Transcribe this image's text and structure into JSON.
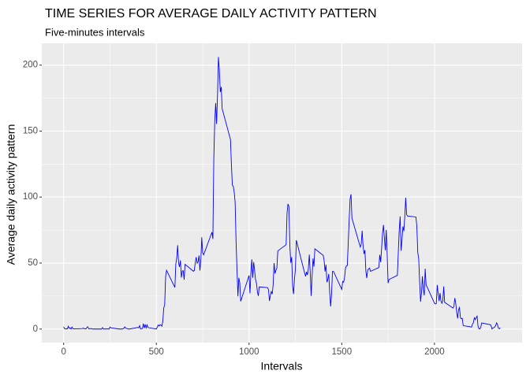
{
  "chart_data": {
    "type": "line",
    "title": "TIME SERIES FOR AVERAGE DAILY ACTIVITY PATTERN",
    "subtitle": "Five-minutes intervals",
    "x_label": "Intervals",
    "y_label": "Average daily activity pattern",
    "x": [
      0,
      5,
      10,
      15,
      20,
      25,
      30,
      35,
      40,
      45,
      50,
      55,
      100,
      105,
      110,
      115,
      120,
      125,
      130,
      135,
      140,
      145,
      150,
      155,
      200,
      205,
      210,
      215,
      220,
      225,
      230,
      235,
      240,
      245,
      250,
      255,
      300,
      305,
      310,
      315,
      320,
      325,
      330,
      335,
      340,
      345,
      350,
      355,
      400,
      405,
      410,
      415,
      420,
      425,
      430,
      435,
      440,
      445,
      450,
      455,
      500,
      505,
      510,
      515,
      520,
      525,
      530,
      535,
      540,
      545,
      550,
      555,
      600,
      605,
      610,
      615,
      620,
      625,
      630,
      635,
      640,
      645,
      650,
      655,
      700,
      705,
      710,
      715,
      720,
      725,
      730,
      735,
      740,
      745,
      750,
      755,
      800,
      805,
      810,
      815,
      820,
      825,
      830,
      835,
      840,
      845,
      850,
      855,
      900,
      905,
      910,
      915,
      920,
      925,
      930,
      935,
      940,
      945,
      950,
      955,
      1000,
      1005,
      1010,
      1015,
      1020,
      1025,
      1030,
      1035,
      1040,
      1045,
      1050,
      1055,
      1100,
      1105,
      1110,
      1115,
      1120,
      1125,
      1130,
      1135,
      1140,
      1145,
      1150,
      1155,
      1200,
      1205,
      1210,
      1215,
      1220,
      1225,
      1230,
      1235,
      1240,
      1245,
      1250,
      1255,
      1300,
      1305,
      1310,
      1315,
      1320,
      1325,
      1330,
      1335,
      1340,
      1345,
      1350,
      1355,
      1400,
      1405,
      1410,
      1415,
      1420,
      1425,
      1430,
      1435,
      1440,
      1445,
      1450,
      1455,
      1500,
      1505,
      1510,
      1515,
      1520,
      1525,
      1530,
      1535,
      1540,
      1545,
      1550,
      1555,
      1600,
      1605,
      1610,
      1615,
      1620,
      1625,
      1630,
      1635,
      1640,
      1645,
      1650,
      1655,
      1700,
      1705,
      1710,
      1715,
      1720,
      1725,
      1730,
      1735,
      1740,
      1745,
      1750,
      1755,
      1800,
      1805,
      1810,
      1815,
      1820,
      1825,
      1830,
      1835,
      1840,
      1845,
      1850,
      1855,
      1900,
      1905,
      1910,
      1915,
      1920,
      1925,
      1930,
      1935,
      1940,
      1945,
      1950,
      1955,
      2000,
      2005,
      2010,
      2015,
      2020,
      2025,
      2030,
      2035,
      2040,
      2045,
      2050,
      2055,
      2100,
      2105,
      2110,
      2115,
      2120,
      2125,
      2130,
      2135,
      2140,
      2145,
      2150,
      2155,
      2200,
      2205,
      2210,
      2215,
      2220,
      2225,
      2230,
      2235,
      2240,
      2245,
      2250,
      2255,
      2300,
      2305,
      2310,
      2315,
      2320,
      2325,
      2330,
      2335,
      2340,
      2345,
      2350,
      2355
    ],
    "series": [
      {
        "color": "#0000ff",
        "values": [
          1.7,
          0.3,
          0.1,
          0.2,
          0.1,
          2.1,
          0.5,
          0.9,
          0,
          1.5,
          0.3,
          0.1,
          0.3,
          0.7,
          0.2,
          0.3,
          0,
          1.1,
          1.8,
          0.2,
          0.2,
          0.4,
          0.3,
          0,
          0,
          0,
          1.1,
          0,
          0,
          0.1,
          0,
          0.2,
          0,
          0,
          1.5,
          0.9,
          0,
          0,
          0,
          0,
          0.2,
          0.6,
          1.6,
          0.6,
          0.5,
          0.1,
          0,
          0,
          1.2,
          0.9,
          2.6,
          0,
          0.3,
          0.4,
          4.1,
          0.7,
          3.5,
          0.8,
          3.1,
          1.1,
          0,
          1.5,
          3,
          2.2,
          3.3,
          3,
          2.1,
          6,
          16,
          18.3,
          39.5,
          44.5,
          31.5,
          49.3,
          53.8,
          63.5,
          50,
          47,
          52,
          39,
          44,
          44.2,
          37.4,
          49,
          43.8,
          44.4,
          50.5,
          54.5,
          49.9,
          50.9,
          55.7,
          44.3,
          52.3,
          69.5,
          57.8,
          56.2,
          73.4,
          68.2,
          129.4,
          157.5,
          171.2,
          155.4,
          177.3,
          206.2,
          195.9,
          179.6,
          183.4,
          167,
          143.5,
          124,
          109.1,
          108.1,
          103.7,
          95.97,
          66.2,
          45.2,
          24.8,
          38.8,
          35,
          21,
          40.6,
          27,
          42.4,
          52.7,
          38.9,
          50.8,
          44.3,
          37.4,
          34.7,
          28.3,
          25.1,
          31.9,
          31.4,
          29.7,
          21.3,
          25.5,
          28.4,
          26.5,
          33.4,
          50,
          42,
          44.6,
          46,
          59.2,
          63.9,
          87.7,
          94.8,
          92.8,
          63.4,
          50.2,
          54.5,
          32.4,
          26.5,
          37.7,
          45.1,
          67.3,
          42.3,
          39.9,
          43.3,
          40.98,
          46.2,
          56.4,
          42.8,
          25.1,
          40,
          53.5,
          47.3,
          60.8,
          55.8,
          51.96,
          43.6,
          48.7,
          35.5,
          37.5,
          41.8,
          27.5,
          17.1,
          26.1,
          43.6,
          43.8,
          30,
          36.1,
          35.5,
          38.8,
          46,
          47.8,
          48.1,
          65.3,
          82.9,
          98.7,
          102.1,
          84,
          62.1,
          64.1,
          74.5,
          63.2,
          56.9,
          59.8,
          43.9,
          38.6,
          44.7,
          45.5,
          46.2,
          43.7,
          46.6,
          56.3,
          50.7,
          61.2,
          72.7,
          78.9,
          68.9,
          59.7,
          75.1,
          56.5,
          34.8,
          37.5,
          40.7,
          58,
          74.7,
          85.3,
          59.3,
          67.8,
          77.7,
          74.2,
          85.3,
          99.5,
          86.6,
          85.6,
          84.9,
          77.8,
          58,
          53.4,
          36.3,
          20.7,
          27.4,
          40,
          30.2,
          25.5,
          45.7,
          33.5,
          19.6,
          19,
          19.3,
          33.3,
          26.8,
          21.2,
          27.3,
          21.3,
          19.5,
          21.3,
          32.3,
          20.2,
          15.9,
          17.2,
          23.5,
          19.2,
          12.5,
          8,
          14.7,
          16.3,
          8.7,
          7.8,
          8.1,
          2.6,
          1.5,
          3.7,
          4.8,
          8.5,
          7.1,
          8.7,
          9.8,
          2.2,
          0.3,
          0.1,
          1.6,
          4.6,
          3.3,
          2.8,
          0,
          0.8,
          1,
          1.6,
          2.6,
          4.7,
          3.3,
          0.6,
          0.2,
          1.1
        ]
      }
    ],
    "xlim": [
      -117.75,
      2472.75
    ],
    "ylim": [
      -10.3,
      216.5
    ],
    "xticks": [
      0,
      500,
      1000,
      1500,
      2000
    ],
    "yticks": [
      0,
      50,
      100,
      150,
      200
    ],
    "grid": true,
    "panel_color": "#ebebeb"
  }
}
